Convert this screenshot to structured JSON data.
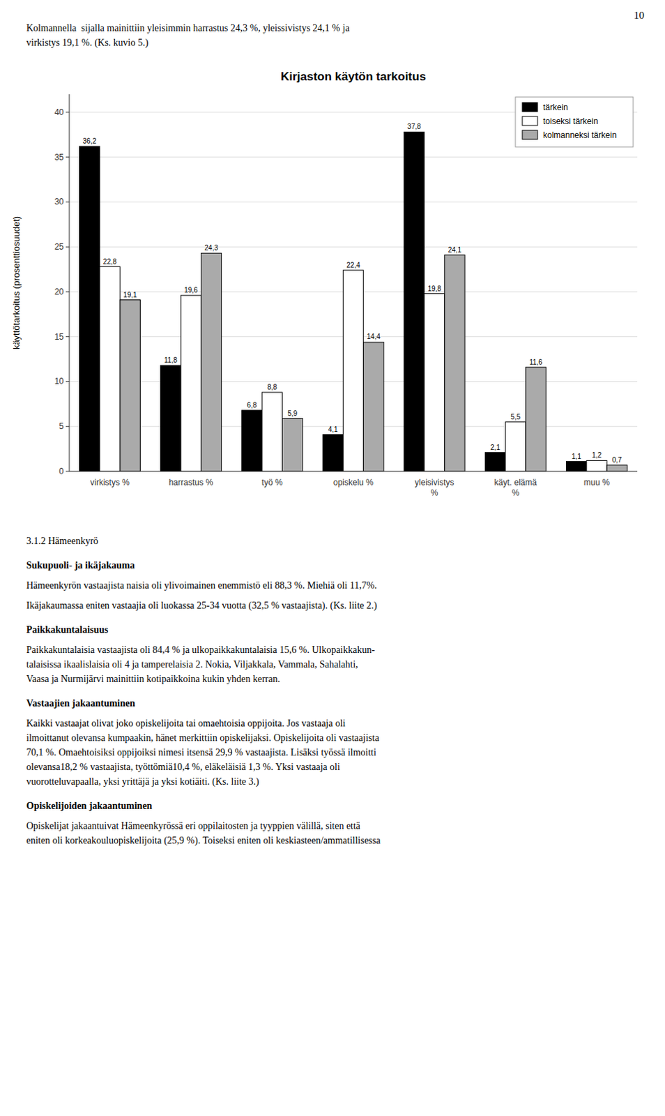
{
  "chart_data": {
    "type": "bar",
    "title": "Kirjaston käytön tarkoitus",
    "y_label": "käyttötarkoitus (prosenttiosuudet)",
    "categories": [
      "virkistys %",
      "harrastus %",
      "työ %",
      "opiskelu %",
      "yleisivistys\n%",
      "käyt. elämä\n%",
      "muu %"
    ],
    "series": [
      {
        "name": "tärkein",
        "color": "#000000",
        "values": [
          36.2,
          11.8,
          6.8,
          4.1,
          37.8,
          2.1,
          1.1
        ],
        "value_labels": [
          "36,2",
          "11,8",
          "6,8",
          "4,1",
          "37,8",
          "2,1",
          "1,1"
        ]
      },
      {
        "name": "toiseksi tärkein",
        "color": "#ffffff",
        "values": [
          22.8,
          19.6,
          8.8,
          22.4,
          19.8,
          5.5,
          1.2
        ],
        "value_labels": [
          "22,8",
          "19,6",
          "8,8",
          "22,4",
          "19,8",
          "5,5",
          "1,2"
        ]
      },
      {
        "name": "kolmanneksi tärkein",
        "color": "#aaaaaa",
        "values": [
          19.1,
          24.3,
          5.9,
          14.4,
          24.1,
          11.6,
          0.7
        ],
        "value_labels": [
          "19,1",
          "24,3",
          "5,9",
          "14,4",
          "24,1",
          "11,6",
          "0,7"
        ]
      }
    ],
    "ylim": [
      0,
      42
    ],
    "yticks": [
      0,
      5,
      10,
      15,
      20,
      25,
      30,
      35,
      40
    ],
    "grid": true,
    "legend": "upper right",
    "data_labels": true
  },
  "page_number": "10",
  "intro": "Kolmannella  sijalla mainittiin yleisimmin harrastus 24,3 %, yleissivistys 24,1 % ja\nvirkistys 19,1 %. (Ks. kuvio 5.)",
  "section_title": "3.1.2 Hämeenkyrö",
  "sections": [
    {
      "heading": "Sukupuoli- ja ikäjakauma",
      "paragraphs": [
        "Hämeenkyrön vastaajista naisia oli ylivoimainen enemmistö eli 88,3 %. Miehiä oli 11,7%.",
        "Ikäjakaumassa eniten vastaajia oli luokassa 25-34 vuotta (32,5 % vastaajista). (Ks. liite 2.)"
      ]
    },
    {
      "heading": "Paikkakuntalaisuus",
      "paragraphs": [
        "Paikkakuntalaisia vastaajista oli 84,4 % ja ulkopaikkakuntalaisia 15,6 %. Ulkopaikkakun-\ntalaisissa ikaalislaisia oli 4 ja tamperelaisia 2. Nokia, Viljakkala, Vammala, Sahalahti,\nVaasa ja Nurmijärvi mainittiin kotipaikkoina kukin yhden kerran."
      ]
    },
    {
      "heading": "Vastaajien jakaantuminen",
      "paragraphs": [
        "Kaikki vastaajat olivat joko opiskelijoita tai omaehtoisia oppijoita. Jos vastaaja oli\nilmoittanut olevansa kumpaakin, hänet merkittiin opiskelijaksi. Opiskelijoita oli vastaajista\n70,1 %. Omaehtoisiksi oppijoiksi nimesi itsensä 29,9 % vastaajista. Lisäksi työssä ilmoitti\nolevansa18,2 % vastaajista, työttömiä10,4 %, eläkeläisiä 1,3 %. Yksi vastaaja oli\nvuorotteluvapaalla, yksi yrittäjä ja yksi kotiäiti. (Ks. liite 3.)"
      ]
    },
    {
      "heading": "Opiskelijoiden jakaantuminen",
      "paragraphs": [
        "Opiskelijat jakaantuivat Hämeenkyrössä eri oppilaitosten ja tyyppien välillä, siten että\neniten oli korkeakouluopiskelijoita (25,9 %). Toiseksi eniten oli keskiasteen/ammatillisessa"
      ]
    }
  ]
}
